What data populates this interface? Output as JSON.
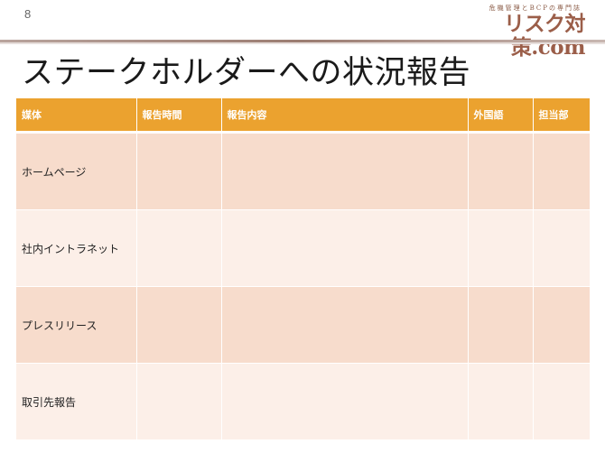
{
  "slide": {
    "page_number": "8",
    "title": "ステークホルダーへの状況報告"
  },
  "logo": {
    "tagline": "危機管理とBCPの専門誌",
    "text": "リスク対策.com"
  },
  "table": {
    "headers": [
      "媒体",
      "報告時間",
      "報告内容",
      "外国語",
      "担当部"
    ],
    "rows": [
      [
        "ホームページ",
        "",
        "",
        "",
        ""
      ],
      [
        "社内イントラネット",
        "",
        "",
        "",
        ""
      ],
      [
        "プレスリリース",
        "",
        "",
        "",
        ""
      ],
      [
        "取引先報告",
        "",
        "",
        "",
        ""
      ]
    ]
  },
  "colors": {
    "header_fill": "#eba22f",
    "row_odd": "#f7dccc",
    "row_even": "#fcefe8",
    "logo": "#9b5e49"
  }
}
